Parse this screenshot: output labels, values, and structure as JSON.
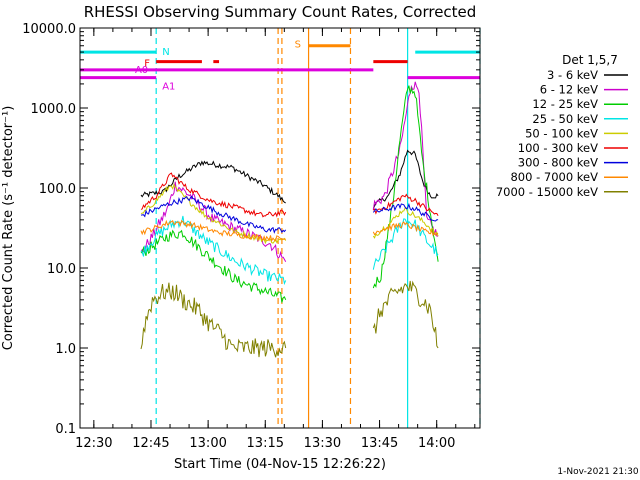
{
  "chart_data": {
    "type": "line",
    "title": "RHESSI Observing Summary Count Rates, Corrected",
    "xlabel": "Start Time (04-Nov-15 12:26:22)",
    "ylabel": "Corrected Count Rate (s⁻¹ detector⁻¹)",
    "yscale": "log",
    "ylim": [
      0.1,
      10000
    ],
    "xlim_minutes": [
      0,
      105
    ],
    "x_tick_labels": [
      "12:30",
      "12:45",
      "13:00",
      "13:15",
      "13:30",
      "13:45",
      "14:00"
    ],
    "y_tick_labels": [
      "0.1",
      "1.0",
      "10.0",
      "100.0",
      "1000.0",
      "10000.0"
    ],
    "legend_title": "Det 1,5,7",
    "legend_position": "right",
    "footer": "1-Nov-2021 21:30",
    "series": [
      {
        "name": "3 - 6 keV",
        "color": "#000000",
        "values": [
          [
            16,
            80
          ],
          [
            22,
            90
          ],
          [
            26,
            140
          ],
          [
            32,
            210
          ],
          [
            40,
            180
          ],
          [
            48,
            110
          ],
          [
            52,
            80
          ],
          [
            54,
            65
          ],
          [
            77,
            60
          ],
          [
            81,
            80
          ],
          [
            84,
            150
          ],
          [
            86,
            300
          ],
          [
            88,
            260
          ],
          [
            90,
            120
          ],
          [
            92,
            80
          ],
          [
            94,
            80
          ]
        ]
      },
      {
        "name": "6 - 12 keV",
        "color": "#cc00cc",
        "values": [
          [
            16,
            15
          ],
          [
            19,
            25
          ],
          [
            23,
            55
          ],
          [
            25,
            110
          ],
          [
            29,
            80
          ],
          [
            35,
            40
          ],
          [
            43,
            28
          ],
          [
            50,
            20
          ],
          [
            54,
            12
          ],
          [
            77,
            60
          ],
          [
            80,
            80
          ],
          [
            84,
            300
          ],
          [
            87,
            2000
          ],
          [
            89,
            1800
          ],
          [
            91,
            40
          ],
          [
            94,
            25
          ]
        ]
      },
      {
        "name": "12 - 25 keV",
        "color": "#00cc00",
        "values": [
          [
            16,
            15
          ],
          [
            20,
            20
          ],
          [
            23,
            25
          ],
          [
            27,
            28
          ],
          [
            33,
            15
          ],
          [
            41,
            7
          ],
          [
            49,
            5
          ],
          [
            54,
            4
          ],
          [
            77,
            6
          ],
          [
            79,
            8
          ],
          [
            82,
            60
          ],
          [
            84,
            400
          ],
          [
            86,
            1800
          ],
          [
            88,
            1600
          ],
          [
            90,
            200
          ],
          [
            94,
            12
          ]
        ]
      },
      {
        "name": "25 - 50 keV",
        "color": "#00e5e5",
        "values": [
          [
            16,
            15
          ],
          [
            20,
            25
          ],
          [
            24,
            35
          ],
          [
            27,
            40
          ],
          [
            33,
            22
          ],
          [
            41,
            12
          ],
          [
            49,
            8
          ],
          [
            54,
            7
          ],
          [
            77,
            10
          ],
          [
            81,
            20
          ],
          [
            85,
            40
          ],
          [
            88,
            35
          ],
          [
            91,
            22
          ],
          [
            94,
            15
          ]
        ]
      },
      {
        "name": "50 - 100 keV",
        "color": "#cccc00",
        "values": [
          [
            16,
            45
          ],
          [
            20,
            70
          ],
          [
            24,
            110
          ],
          [
            27,
            80
          ],
          [
            33,
            45
          ],
          [
            41,
            28
          ],
          [
            49,
            22
          ],
          [
            54,
            22
          ],
          [
            77,
            25
          ],
          [
            81,
            35
          ],
          [
            85,
            55
          ],
          [
            88,
            45
          ],
          [
            91,
            35
          ],
          [
            94,
            25
          ]
        ]
      },
      {
        "name": "100 - 300 keV",
        "color": "#ee0000",
        "values": [
          [
            16,
            55
          ],
          [
            20,
            80
          ],
          [
            24,
            150
          ],
          [
            28,
            100
          ],
          [
            34,
            70
          ],
          [
            42,
            55
          ],
          [
            48,
            45
          ],
          [
            54,
            50
          ],
          [
            77,
            50
          ],
          [
            81,
            60
          ],
          [
            85,
            80
          ],
          [
            88,
            70
          ],
          [
            91,
            55
          ],
          [
            94,
            45
          ]
        ]
      },
      {
        "name": "300 - 800 keV",
        "color": "#0000dd",
        "values": [
          [
            16,
            45
          ],
          [
            20,
            55
          ],
          [
            24,
            65
          ],
          [
            29,
            75
          ],
          [
            36,
            50
          ],
          [
            44,
            35
          ],
          [
            49,
            30
          ],
          [
            54,
            30
          ],
          [
            77,
            50
          ],
          [
            81,
            55
          ],
          [
            85,
            60
          ],
          [
            88,
            55
          ],
          [
            91,
            45
          ],
          [
            94,
            40
          ]
        ]
      },
      {
        "name": "800 - 7000 keV",
        "color": "#ff8800",
        "values": [
          [
            16,
            28
          ],
          [
            20,
            32
          ],
          [
            24,
            38
          ],
          [
            29,
            35
          ],
          [
            36,
            28
          ],
          [
            44,
            25
          ],
          [
            49,
            24
          ],
          [
            54,
            23
          ],
          [
            77,
            28
          ],
          [
            81,
            32
          ],
          [
            85,
            35
          ],
          [
            88,
            32
          ],
          [
            91,
            28
          ],
          [
            94,
            27
          ]
        ]
      },
      {
        "name": "7000 - 15000 keV",
        "color": "#808000",
        "values": [
          [
            16,
            1
          ],
          [
            17,
            2
          ],
          [
            19,
            4
          ],
          [
            22,
            5
          ],
          [
            25,
            5
          ],
          [
            27,
            4
          ],
          [
            31,
            3
          ],
          [
            34,
            2
          ],
          [
            37,
            1.5
          ],
          [
            40,
            1
          ],
          [
            45,
            1
          ],
          [
            49,
            1
          ],
          [
            54,
            1
          ],
          [
            77,
            1.5
          ],
          [
            79,
            3
          ],
          [
            83,
            5
          ],
          [
            86,
            6
          ],
          [
            88,
            5
          ],
          [
            90,
            4
          ],
          [
            92,
            3
          ],
          [
            94,
            1
          ]
        ]
      }
    ],
    "flag_bars": [
      {
        "label": "N",
        "color": "#00e5e5",
        "level": 5000,
        "segments": [
          [
            0,
            20
          ],
          [
            88,
            105
          ]
        ]
      },
      {
        "label": "F",
        "color": "#ee0000",
        "level": 3800,
        "segments": [
          [
            20,
            32
          ],
          [
            35,
            36.5
          ],
          [
            77,
            86
          ]
        ]
      },
      {
        "label": "S",
        "color": "#ff8800",
        "level": 6000,
        "segments": [
          [
            60,
            71
          ]
        ]
      },
      {
        "label": "A0",
        "color": "#dd00dd",
        "level": 3000,
        "segments": [
          [
            0,
            77
          ]
        ]
      },
      {
        "label": "A1",
        "color": "#dd00dd",
        "level": 2400,
        "segments": [
          [
            0,
            20
          ],
          [
            86,
            105
          ]
        ]
      }
    ],
    "vertical_lines": [
      {
        "t": 20,
        "color": "#00e5e5",
        "dashed": true
      },
      {
        "t": 86,
        "color": "#00e5e5",
        "dashed": false
      },
      {
        "t": 105,
        "color": "#00e5e5",
        "dashed": true
      },
      {
        "t": 52,
        "color": "#ff8800",
        "dashed": true
      },
      {
        "t": 53,
        "color": "#ff8800",
        "dashed": true
      },
      {
        "t": 60,
        "color": "#ff8800",
        "dashed": false
      },
      {
        "t": 71,
        "color": "#ff8800",
        "dashed": true
      }
    ]
  }
}
